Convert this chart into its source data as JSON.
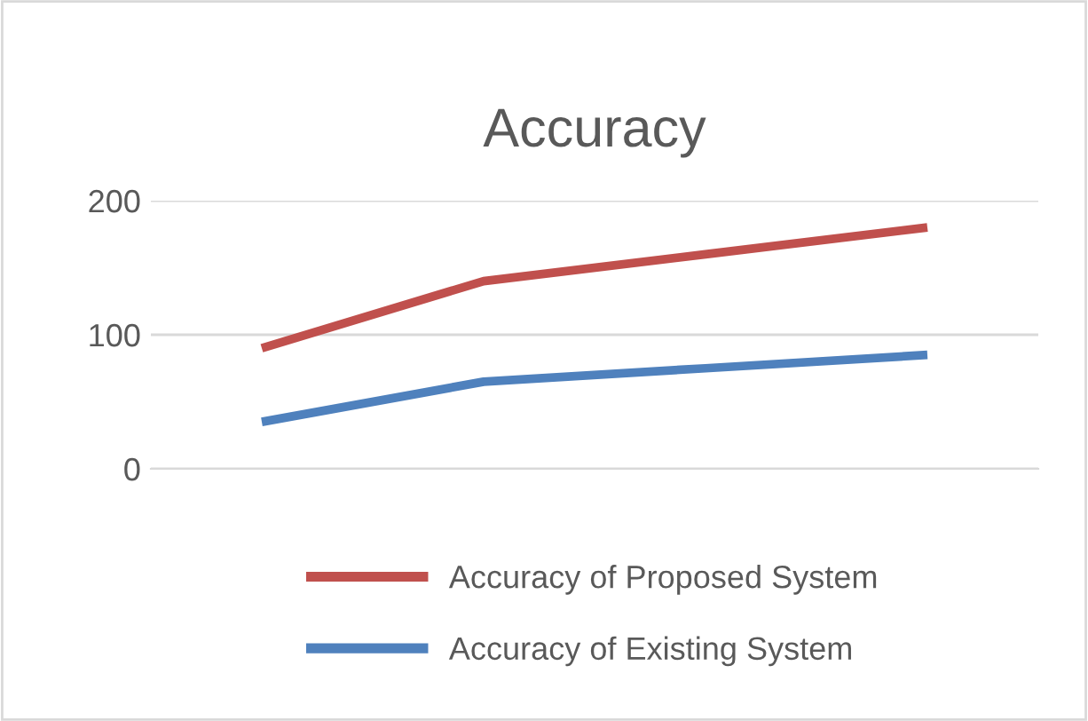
{
  "chart_data": {
    "type": "line",
    "title": "Accuracy",
    "categories": [
      null,
      null,
      null,
      null
    ],
    "ylim": [
      0,
      200
    ],
    "yticks": [
      0,
      100,
      200
    ],
    "grid": "y",
    "tick_labels": "y",
    "legend": "bottom",
    "marker": "none",
    "line_style": "solid",
    "series": [
      {
        "name": "Accuracy of Proposed System",
        "color": "#c0504d",
        "values": [
          90,
          140,
          160,
          180
        ]
      },
      {
        "name": "Accuracy of Existing System",
        "color": "#4f81bd",
        "values": [
          35,
          65,
          75,
          85
        ]
      }
    ]
  }
}
